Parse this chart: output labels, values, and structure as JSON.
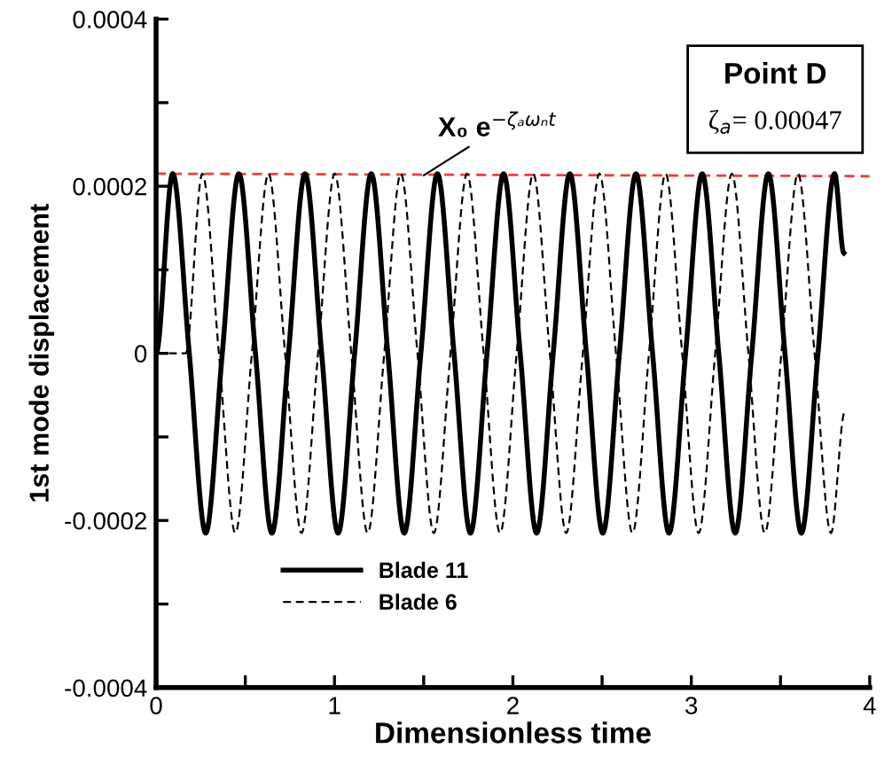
{
  "chart_data": {
    "type": "line",
    "xlabel": "Dimensionless time",
    "ylabel": "1st mode displacement",
    "xlim": [
      0,
      4
    ],
    "ylim": [
      -0.0004,
      0.0004
    ],
    "xticks": [
      0,
      {
        "value": 0.5,
        "label": null
      },
      1,
      {
        "value": 1.5,
        "label": null
      },
      2,
      {
        "value": 2.5,
        "label": null
      },
      3,
      {
        "value": 3.5,
        "label": null
      },
      4
    ],
    "yticks": [
      {
        "value": -0.0004,
        "label": "-0.0004"
      },
      {
        "value": -0.0003,
        "label": null
      },
      {
        "value": -0.0002,
        "label": "-0.0002"
      },
      {
        "value": -0.0001,
        "label": null
      },
      0,
      {
        "value": 0.0001,
        "label": null
      },
      {
        "value": 0.0002,
        "label": "0.0002"
      },
      {
        "value": 0.0003,
        "label": null
      },
      {
        "value": 0.0004,
        "label": "0.0004"
      }
    ],
    "grid": false,
    "legend": "bottom left",
    "series": [
      {
        "name": "Blade 11",
        "color": "#000000",
        "line_style": "solid",
        "x": [
          0,
          0.093,
          0.186,
          0.278,
          0.371,
          0.464,
          0.557,
          0.649,
          0.742,
          0.835,
          0.928,
          1.02,
          1.113,
          1.206,
          1.299,
          1.391,
          1.484,
          1.577,
          1.67,
          1.762,
          1.855,
          1.948,
          2.041,
          2.133,
          2.226,
          2.319,
          2.412,
          2.504,
          2.597,
          2.69,
          2.783,
          2.875,
          2.968,
          3.061,
          3.154,
          3.246,
          3.339,
          3.432,
          3.525,
          3.617,
          3.71,
          3.803,
          3.855
        ],
        "values": [
          0,
          0.000215,
          0,
          -0.000215,
          0,
          0.000215,
          0,
          -0.000215,
          0,
          0.000215,
          0,
          -0.000215,
          0,
          0.000215,
          0,
          -0.000215,
          0,
          0.000215,
          0,
          -0.000215,
          0,
          0.000215,
          0,
          -0.000215,
          0,
          0.000215,
          0,
          -0.000215,
          0,
          0.000215,
          0,
          -0.000215,
          0,
          0.000215,
          0,
          -0.000215,
          0,
          0.000215,
          0,
          -0.000215,
          0,
          0.000215,
          0.00012
        ]
      },
      {
        "name": "Blade 6",
        "color": "#000000",
        "line_style": "dashed",
        "x": [
          0,
          0.166,
          0.259,
          0.352,
          0.444,
          0.537,
          0.63,
          0.723,
          0.815,
          0.908,
          1.001,
          1.094,
          1.186,
          1.279,
          1.372,
          1.465,
          1.557,
          1.65,
          1.743,
          1.836,
          1.928,
          2.021,
          2.114,
          2.207,
          2.299,
          2.392,
          2.485,
          2.578,
          2.67,
          2.763,
          2.856,
          2.949,
          3.041,
          3.134,
          3.227,
          3.32,
          3.412,
          3.505,
          3.598,
          3.691,
          3.783,
          3.86
        ],
        "values": [
          0,
          0,
          0.000215,
          0,
          -0.000215,
          0,
          0.000215,
          0,
          -0.000215,
          0,
          0.000215,
          0,
          -0.000215,
          0,
          0.000215,
          0,
          -0.000215,
          0,
          0.000215,
          0,
          -0.000215,
          0,
          0.000215,
          0,
          -0.000215,
          0,
          0.000215,
          0,
          -0.000215,
          0,
          0.000215,
          0,
          -0.000215,
          0,
          0.000215,
          0,
          -0.000215,
          0,
          0.000215,
          0,
          -0.000215,
          -7e-05
        ]
      },
      {
        "color": "#e8413c",
        "line_style": "dashed",
        "x": [
          0,
          4
        ],
        "values": [
          0.000215,
          0.000212
        ]
      }
    ],
    "annotations": [
      {
        "text": "X₀ e$^{−ζₐωₙt}$",
        "x": 1.5,
        "y": 0.000213
      },
      "Point D",
      "ζ$_{a}$= 0.00047"
    ]
  }
}
